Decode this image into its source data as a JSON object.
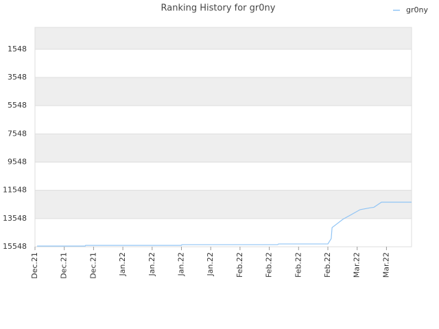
{
  "chart_data": {
    "type": "line",
    "title": "Ranking History for gr0ny",
    "series": [
      {
        "name": "gr0ny",
        "color": "#90c4f5",
        "x": [
          0.5,
          12,
          12.1,
          35,
          35.1,
          58,
          58.2,
          70,
          70.8,
          71,
          73.6,
          77.7,
          80.2,
          81,
          82.8,
          90
        ],
        "values": [
          15500,
          15500,
          15450,
          15450,
          15400,
          15400,
          15350,
          15350,
          14970,
          14190,
          13600,
          12920,
          12780,
          12750,
          12390,
          12390
        ]
      }
    ],
    "xlim": [
      0,
      90
    ],
    "xticks": [
      {
        "value": 0,
        "label": "Dec.21"
      },
      {
        "value": 7,
        "label": "Dec.21"
      },
      {
        "value": 14,
        "label": "Dec.21"
      },
      {
        "value": 21,
        "label": "Jan.22"
      },
      {
        "value": 28,
        "label": "Jan.22"
      },
      {
        "value": 35,
        "label": "Jan.22"
      },
      {
        "value": 42,
        "label": "Jan.22"
      },
      {
        "value": 49,
        "label": "Feb.22"
      },
      {
        "value": 56,
        "label": "Feb.22"
      },
      {
        "value": 63,
        "label": "Feb.22"
      },
      {
        "value": 70,
        "label": "Feb.22"
      },
      {
        "value": 77,
        "label": "Mar.22"
      },
      {
        "value": 84,
        "label": "Mar.22"
      }
    ],
    "ylim": [
      15548,
      0
    ],
    "yticks": [
      1548,
      3548,
      5548,
      7548,
      9548,
      11548,
      13548,
      15548
    ],
    "grid": true,
    "legend": "top-right"
  }
}
